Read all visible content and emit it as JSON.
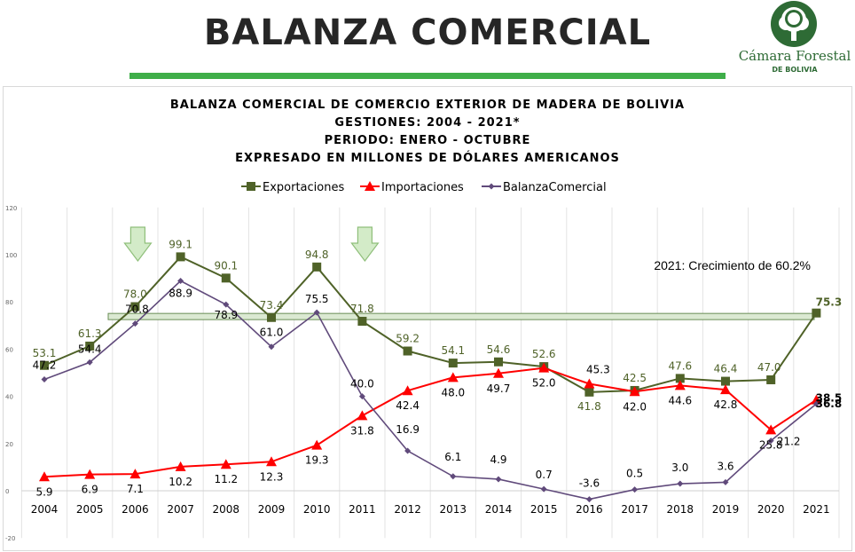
{
  "header": {
    "title": "BALANZA COMERCIAL",
    "logo_name": "Cámara Forestal",
    "logo_sub": "DE BOLIVIA"
  },
  "colors": {
    "exportaciones": "#4f6228",
    "importaciones": "#ff0000",
    "balanza": "#604a7b",
    "title_bar": "#3fae49",
    "logo": "#2e6b35"
  },
  "chart_data": {
    "type": "line",
    "title_lines": [
      "BALANZA COMERCIAL DE COMERCIO EXTERIOR DE MADERA DE BOLIVIA",
      "GESTIONES: 2004 - 2021*",
      "PERIODO: ENERO - OCTUBRE",
      "EXPRESADO EN MILLONES DE DÓLARES AMERICANOS"
    ],
    "categories": [
      "2004",
      "2005",
      "2006",
      "2007",
      "2008",
      "2009",
      "2010",
      "2011",
      "2012",
      "2013",
      "2014",
      "2015",
      "2016",
      "2017",
      "2018",
      "2019",
      "2020",
      "2021"
    ],
    "series": [
      {
        "name": "Exportaciones",
        "marker": "square",
        "values": [
          53.1,
          61.3,
          78.0,
          99.1,
          90.1,
          73.4,
          94.8,
          71.8,
          59.2,
          54.1,
          54.6,
          52.6,
          41.8,
          42.5,
          47.6,
          46.4,
          47.0,
          75.3
        ]
      },
      {
        "name": "Importaciones",
        "marker": "triangle",
        "values": [
          5.9,
          6.9,
          7.1,
          10.2,
          11.2,
          12.3,
          19.3,
          31.8,
          42.4,
          48.0,
          49.7,
          52.0,
          45.3,
          42.0,
          44.6,
          42.8,
          25.8,
          38.5
        ]
      },
      {
        "name": "BalanzaComercial",
        "marker": "diamond",
        "values": [
          47.2,
          54.4,
          70.8,
          88.9,
          78.9,
          61.0,
          75.5,
          40.0,
          16.9,
          6.1,
          4.9,
          0.7,
          -3.6,
          0.5,
          3.0,
          3.6,
          21.2,
          36.8
        ]
      }
    ],
    "ylim": [
      -20,
      120
    ],
    "y_ticks": [
      -20,
      0,
      20,
      40,
      60,
      80,
      100,
      120
    ],
    "legend_position": "top-center",
    "grid": "vertical",
    "annotation": "2021: Crecimiento de 60.2%",
    "highlight_level": 74,
    "arrow_years": [
      "2006",
      "2011"
    ]
  }
}
